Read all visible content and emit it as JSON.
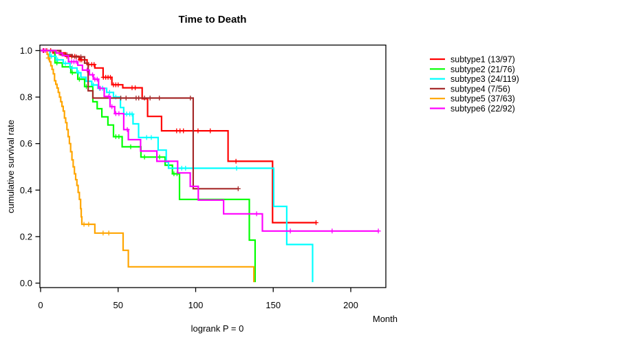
{
  "title": "Time to Death",
  "subtitle": "logrank P = 0",
  "axes": {
    "x": {
      "unit": "Month",
      "tick_values": [
        0,
        50,
        100,
        150,
        200
      ],
      "tick_labels": [
        "0",
        "50",
        "100",
        "150",
        "200"
      ]
    },
    "y": {
      "label": "cumulative survival rate",
      "tick_values": [
        0.0,
        0.2,
        0.4,
        0.6,
        0.8,
        1.0
      ],
      "tick_labels": [
        "0.0",
        "0.2",
        "0.4",
        "0.6",
        "0.8",
        "1.0"
      ]
    }
  },
  "legend": {
    "entries": [
      {
        "label": "subtype1 (13/97)",
        "color": "#ff0000"
      },
      {
        "label": "subtype2 (21/76)",
        "color": "#00ff00"
      },
      {
        "label": "subtype3 (24/119)",
        "color": "#00ffff"
      },
      {
        "label": "subtype4 (7/56)",
        "color": "#a52a2a"
      },
      {
        "label": "subtype5 (37/63)",
        "color": "#ffa500"
      },
      {
        "label": "subtype6 (22/92)",
        "color": "#ff00ff"
      }
    ]
  },
  "chart_data": {
    "type": "line",
    "variant": "kaplan_meier_step",
    "title": "Time to Death",
    "xlabel": "Month",
    "ylabel": "cumulative survival rate",
    "annotation": "logrank P = 0",
    "xlim": [
      0,
      222
    ],
    "ylim": [
      0,
      1.04
    ],
    "grid": false,
    "legend_position": "right-outside",
    "series": [
      {
        "name": "subtype1 (13/97)",
        "subtype": "subtype1",
        "events": 13,
        "n": 97,
        "color": "#ff0000",
        "steps": [
          [
            0,
            1
          ],
          [
            8,
            0.99
          ],
          [
            16,
            0.975
          ],
          [
            24.8,
            0.96
          ],
          [
            30,
            0.94
          ],
          [
            35,
            0.925
          ],
          [
            40.3,
            0.885
          ],
          [
            46,
            0.853
          ],
          [
            53,
            0.84
          ],
          [
            65.5,
            0.793
          ],
          [
            69,
            0.717
          ],
          [
            78,
            0.655
          ],
          [
            120.9,
            0.524
          ],
          [
            149.6,
            0.26
          ]
        ],
        "end": 178.1,
        "censor_times": [
          2,
          4,
          6.5,
          9,
          12,
          17,
          20,
          22,
          25.5,
          26.5,
          31,
          33,
          34.5,
          40.5,
          42,
          43.5,
          45,
          47,
          48.5,
          50,
          59,
          61,
          87.7,
          89.9,
          92.1,
          101.5,
          109.4,
          126,
          177.6
        ]
      },
      {
        "name": "subtype2 (21/76)",
        "subtype": "subtype2",
        "events": 21,
        "n": 76,
        "color": "#00ff00",
        "steps": [
          [
            0,
            1
          ],
          [
            9.3,
            0.947
          ],
          [
            14,
            0.93
          ],
          [
            19.5,
            0.905
          ],
          [
            24,
            0.877
          ],
          [
            28.4,
            0.845
          ],
          [
            33.7,
            0.78
          ],
          [
            36.5,
            0.75
          ],
          [
            39.5,
            0.715
          ],
          [
            43.4,
            0.68
          ],
          [
            47,
            0.63
          ],
          [
            52.6,
            0.586
          ],
          [
            64.7,
            0.542
          ],
          [
            80.3,
            0.507
          ],
          [
            85,
            0.47
          ],
          [
            89.6,
            0.36
          ],
          [
            134.6,
            0.185
          ],
          [
            138.3,
            0.004
          ]
        ],
        "end": 138.3,
        "censor_times": [
          10.5,
          20.5,
          25,
          29.5,
          48.5,
          50.5,
          58.1,
          67,
          75.1,
          76.7,
          86,
          88
        ]
      },
      {
        "name": "subtype3 (24/119)",
        "subtype": "subtype3",
        "events": 24,
        "n": 119,
        "color": "#00ffff",
        "steps": [
          [
            0,
            1
          ],
          [
            6,
            0.975
          ],
          [
            10,
            0.96
          ],
          [
            14.6,
            0.945
          ],
          [
            19,
            0.925
          ],
          [
            23.5,
            0.905
          ],
          [
            26,
            0.885
          ],
          [
            29.3,
            0.868
          ],
          [
            33,
            0.852
          ],
          [
            37,
            0.838
          ],
          [
            42.6,
            0.82
          ],
          [
            47,
            0.8
          ],
          [
            51.5,
            0.755
          ],
          [
            53.6,
            0.727
          ],
          [
            59.6,
            0.685
          ],
          [
            63.2,
            0.626
          ],
          [
            75.8,
            0.572
          ],
          [
            81,
            0.52
          ],
          [
            82.5,
            0.494
          ],
          [
            150.3,
            0.33
          ],
          [
            158.7,
            0.166
          ],
          [
            175.4,
            0.004
          ]
        ],
        "end": 175.4,
        "censor_times": [
          7,
          11,
          16,
          20.5,
          24.5,
          30.5,
          34,
          38,
          40,
          44.5,
          48.5,
          55.5,
          57.5,
          59,
          68.4,
          71.4,
          91,
          93.5,
          126.4
        ]
      },
      {
        "name": "subtype4 (7/56)",
        "subtype": "subtype4",
        "events": 7,
        "n": 56,
        "color": "#a52a2a",
        "steps": [
          [
            0,
            1
          ],
          [
            13,
            0.982
          ],
          [
            20.4,
            0.973
          ],
          [
            28.4,
            0.946
          ],
          [
            30.7,
            0.827
          ],
          [
            33.7,
            0.796
          ],
          [
            98.4,
            0.406
          ]
        ],
        "end": 127.8,
        "censor_times": [
          17,
          23,
          26,
          51.7,
          55.1,
          61.6,
          63.3,
          67,
          70.6,
          76.6,
          96.6,
          127.4
        ]
      },
      {
        "name": "subtype5 (37/63)",
        "subtype": "subtype5",
        "events": 37,
        "n": 63,
        "color": "#ffa500",
        "steps": [
          [
            0,
            1
          ],
          [
            4.2,
            0.984
          ],
          [
            5,
            0.968
          ],
          [
            5.8,
            0.952
          ],
          [
            6.6,
            0.935
          ],
          [
            7.4,
            0.919
          ],
          [
            8.2,
            0.9
          ],
          [
            9,
            0.87
          ],
          [
            9.8,
            0.855
          ],
          [
            10.6,
            0.839
          ],
          [
            11.4,
            0.82
          ],
          [
            12.2,
            0.8
          ],
          [
            13,
            0.78
          ],
          [
            13.8,
            0.76
          ],
          [
            14.6,
            0.74
          ],
          [
            15.4,
            0.71
          ],
          [
            16.2,
            0.69
          ],
          [
            17,
            0.66
          ],
          [
            17.8,
            0.63
          ],
          [
            18.6,
            0.6
          ],
          [
            19.4,
            0.565
          ],
          [
            20.2,
            0.53
          ],
          [
            21,
            0.5
          ],
          [
            21.8,
            0.47
          ],
          [
            22.6,
            0.445
          ],
          [
            23.4,
            0.42
          ],
          [
            24.2,
            0.39
          ],
          [
            25,
            0.36
          ],
          [
            25.8,
            0.32
          ],
          [
            26.2,
            0.285
          ],
          [
            26.6,
            0.253
          ],
          [
            35,
            0.215
          ],
          [
            53.2,
            0.141
          ],
          [
            56.6,
            0.07
          ],
          [
            137.5,
            0.004
          ]
        ],
        "end": 137.5,
        "censor_times": [
          5,
          28,
          31,
          40.3,
          44
        ]
      },
      {
        "name": "subtype6 (22/92)",
        "subtype": "subtype6",
        "events": 22,
        "n": 92,
        "color": "#ff00ff",
        "steps": [
          [
            0,
            1
          ],
          [
            10,
            0.989
          ],
          [
            14,
            0.978
          ],
          [
            18,
            0.952
          ],
          [
            24,
            0.937
          ],
          [
            27,
            0.916
          ],
          [
            31.5,
            0.896
          ],
          [
            34,
            0.877
          ],
          [
            37.4,
            0.838
          ],
          [
            41,
            0.803
          ],
          [
            44.8,
            0.759
          ],
          [
            47.8,
            0.729
          ],
          [
            53.6,
            0.66
          ],
          [
            56.6,
            0.617
          ],
          [
            64.5,
            0.568
          ],
          [
            75,
            0.524
          ],
          [
            88.4,
            0.474
          ],
          [
            96.5,
            0.416
          ],
          [
            101.7,
            0.357
          ],
          [
            118,
            0.298
          ],
          [
            143,
            0.224
          ]
        ],
        "end": 218,
        "censor_times": [
          1.5,
          3,
          20,
          21.5,
          23,
          30,
          33.5,
          35,
          36.5,
          38.5,
          44,
          46,
          48.5,
          50.5,
          55.9,
          139.3,
          161,
          188,
          217.8
        ]
      }
    ]
  }
}
